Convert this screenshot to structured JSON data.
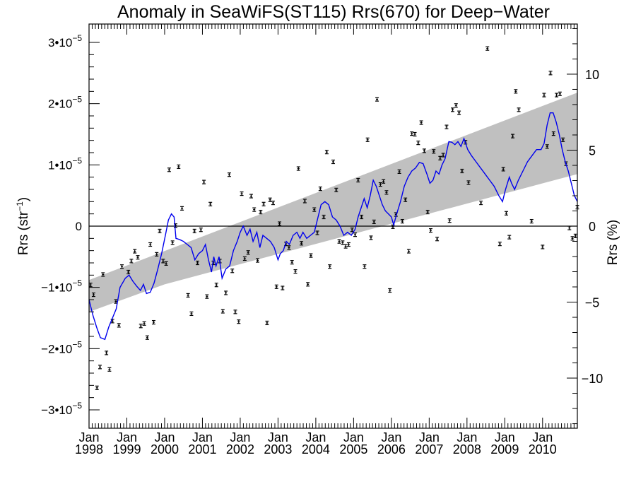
{
  "chart_data": {
    "type": "scatter",
    "title": "Anomaly in SeaWiFS(ST115) Rrs(670) for Deep−Water",
    "ylabel_left": {
      "base": "Rrs (str",
      "sup": "−1",
      "close": ")"
    },
    "ylabel_right": "Rrs (%)",
    "x_domain": [
      1998.0,
      2010.92
    ],
    "x_ticks": [
      {
        "x": 1998,
        "month": "Jan",
        "year": "1998"
      },
      {
        "x": 1999,
        "month": "Jan",
        "year": "1999"
      },
      {
        "x": 2000,
        "month": "Jan",
        "year": "2000"
      },
      {
        "x": 2001,
        "month": "Jan",
        "year": "2001"
      },
      {
        "x": 2002,
        "month": "Jan",
        "year": "2002"
      },
      {
        "x": 2003,
        "month": "Jan",
        "year": "2003"
      },
      {
        "x": 2004,
        "month": "Jan",
        "year": "2004"
      },
      {
        "x": 2005,
        "month": "Jan",
        "year": "2005"
      },
      {
        "x": 2006,
        "month": "Jan",
        "year": "2006"
      },
      {
        "x": 2007,
        "month": "Jan",
        "year": "2007"
      },
      {
        "x": 2008,
        "month": "Jan",
        "year": "2008"
      },
      {
        "x": 2009,
        "month": "Jan",
        "year": "2009"
      },
      {
        "x": 2010,
        "month": "Jan",
        "year": "2010"
      }
    ],
    "y_left_range": [
      -3.3e-05,
      3.3e-05
    ],
    "y_left_ticks": [
      {
        "value": 3e-05,
        "mant": "3•10",
        "exp": "−5"
      },
      {
        "value": 2e-05,
        "mant": "2•10",
        "exp": "−5"
      },
      {
        "value": 1e-05,
        "mant": "1•10",
        "exp": "−5"
      },
      {
        "value": 0,
        "mant": "0",
        "exp": ""
      },
      {
        "value": -1e-05,
        "mant": "−1•10",
        "exp": "−5"
      },
      {
        "value": -2e-05,
        "mant": "−2•10",
        "exp": "−5"
      },
      {
        "value": -3e-05,
        "mant": "−3•10",
        "exp": "−5"
      }
    ],
    "y_right_range": [
      -13.3,
      13.3
    ],
    "y_right_ticks": [
      {
        "value": 10,
        "label": "10"
      },
      {
        "value": 5,
        "label": "5"
      },
      {
        "value": 0,
        "label": "0"
      },
      {
        "value": -5,
        "label": "−5"
      },
      {
        "value": -10,
        "label": "−10"
      }
    ],
    "zero_line": 0,
    "points": [
      [
        1998.04,
        -9.6e-06
      ],
      [
        1998.12,
        -1.12e-05
      ],
      [
        1998.21,
        -2.64e-05
      ],
      [
        1998.29,
        -2.3e-05
      ],
      [
        1998.37,
        -7.9e-06
      ],
      [
        1998.46,
        -2.07e-05
      ],
      [
        1998.54,
        -2.34e-05
      ],
      [
        1998.62,
        -1.55e-05
      ],
      [
        1998.71,
        -1.23e-05
      ],
      [
        1998.79,
        -1.62e-05
      ],
      [
        1998.87,
        -6.6e-06
      ],
      [
        1999.04,
        -7.5e-06
      ],
      [
        1999.12,
        -5.7e-06
      ],
      [
        1999.21,
        -4.1e-06
      ],
      [
        1999.29,
        -5.1e-06
      ],
      [
        1999.37,
        -1.63e-05
      ],
      [
        1999.46,
        -1.59e-05
      ],
      [
        1999.54,
        -1.82e-05
      ],
      [
        1999.62,
        -3e-06
      ],
      [
        1999.71,
        -1.57e-05
      ],
      [
        1999.79,
        -4.6e-06
      ],
      [
        1999.87,
        -8e-07
      ],
      [
        1999.96,
        -5.7e-06
      ],
      [
        2000.04,
        -6.1e-06
      ],
      [
        2000.12,
        9.2e-06
      ],
      [
        2000.21,
        -2.7e-06
      ],
      [
        2000.29,
        9e-08
      ],
      [
        2000.37,
        9.7e-06
      ],
      [
        2000.46,
        2.9e-06
      ],
      [
        2000.62,
        -1.13e-05
      ],
      [
        2000.71,
        -1.43e-05
      ],
      [
        2000.79,
        -8e-07
      ],
      [
        2000.87,
        -6e-06
      ],
      [
        2000.96,
        -6e-07
      ],
      [
        2001.04,
        7.2e-06
      ],
      [
        2001.12,
        -1.15e-05
      ],
      [
        2001.21,
        3.6e-06
      ],
      [
        2001.29,
        -6e-06
      ],
      [
        2001.37,
        -9.6e-06
      ],
      [
        2001.46,
        -5.7e-06
      ],
      [
        2001.54,
        -1.39e-05
      ],
      [
        2001.62,
        -1.09e-05
      ],
      [
        2001.71,
        8.4e-06
      ],
      [
        2001.79,
        -7.3e-06
      ],
      [
        2001.87,
        -1.4e-05
      ],
      [
        2001.96,
        -1.56e-05
      ],
      [
        2002.04,
        5.3e-06
      ],
      [
        2002.12,
        -5.3e-06
      ],
      [
        2002.21,
        -4.3e-06
      ],
      [
        2002.29,
        4.9e-06
      ],
      [
        2002.37,
        2.7e-06
      ],
      [
        2002.46,
        -5.6e-06
      ],
      [
        2002.54,
        2.3e-06
      ],
      [
        2002.62,
        3.6e-06
      ],
      [
        2002.71,
        -1.58e-05
      ],
      [
        2002.79,
        4.3e-06
      ],
      [
        2002.87,
        3.8e-06
      ],
      [
        2002.96,
        -9.9e-06
      ],
      [
        2003.04,
        4e-07
      ],
      [
        2003.12,
        -1.01e-05
      ],
      [
        2003.21,
        -2.9e-06
      ],
      [
        2003.29,
        -3.5e-06
      ],
      [
        2003.37,
        -5.9e-06
      ],
      [
        2003.46,
        -7.4e-06
      ],
      [
        2003.54,
        9.4e-06
      ],
      [
        2003.62,
        -2.8e-06
      ],
      [
        2003.71,
        4.1e-06
      ],
      [
        2003.79,
        -9.5e-06
      ],
      [
        2003.87,
        -4.8e-06
      ],
      [
        2003.96,
        2.7e-06
      ],
      [
        2004.04,
        -1.1e-06
      ],
      [
        2004.12,
        6.1e-06
      ],
      [
        2004.21,
        1.5e-06
      ],
      [
        2004.29,
        1.21e-05
      ],
      [
        2004.37,
        -6.6e-06
      ],
      [
        2004.46,
        1.05e-05
      ],
      [
        2004.54,
        5.9e-06
      ],
      [
        2004.62,
        -2.5e-06
      ],
      [
        2004.71,
        -2.7e-06
      ],
      [
        2004.79,
        -3.3e-06
      ],
      [
        2004.87,
        -3e-06
      ],
      [
        2004.96,
        -6e-07
      ],
      [
        2005.04,
        -1.4e-06
      ],
      [
        2005.12,
        7.5e-06
      ],
      [
        2005.21,
        1.5e-06
      ],
      [
        2005.29,
        -6.6e-06
      ],
      [
        2005.37,
        1.41e-05
      ],
      [
        2005.46,
        -1.9e-06
      ],
      [
        2005.54,
        7e-07
      ],
      [
        2005.62,
        2.07e-05
      ],
      [
        2005.71,
        6.8e-06
      ],
      [
        2005.79,
        7.3e-06
      ],
      [
        2005.87,
        5.5e-06
      ],
      [
        2005.96,
        -1.05e-05
      ],
      [
        2006.04,
        -1e-07
      ],
      [
        2006.12,
        1.9e-06
      ],
      [
        2006.21,
        8.9e-06
      ],
      [
        2006.29,
        8e-07
      ],
      [
        2006.37,
        4.3e-06
      ],
      [
        2006.46,
        -4.1e-06
      ],
      [
        2006.54,
        1.51e-05
      ],
      [
        2006.62,
        1.5e-05
      ],
      [
        2006.71,
        1.36e-05
      ],
      [
        2006.79,
        1.69e-05
      ],
      [
        2006.87,
        1.23e-05
      ],
      [
        2006.96,
        2.3e-06
      ],
      [
        2007.04,
        -7e-07
      ],
      [
        2007.12,
        1.22e-05
      ],
      [
        2007.21,
        -2.1e-06
      ],
      [
        2007.29,
        1.11e-05
      ],
      [
        2007.37,
        1.16e-05
      ],
      [
        2007.46,
        1.62e-05
      ],
      [
        2007.54,
        9e-07
      ],
      [
        2007.62,
        1.9e-05
      ],
      [
        2007.71,
        1.97e-05
      ],
      [
        2007.79,
        1.85e-05
      ],
      [
        2007.87,
        9e-06
      ],
      [
        2007.96,
        1.37e-05
      ],
      [
        2008.04,
        7.1e-06
      ],
      [
        2008.37,
        3.8e-06
      ],
      [
        2008.54,
        2.9e-05
      ],
      [
        2008.87,
        -2.9e-06
      ],
      [
        2008.96,
        9.3e-06
      ],
      [
        2009.04,
        2.1e-06
      ],
      [
        2009.12,
        -1.8e-06
      ],
      [
        2009.21,
        1.47e-05
      ],
      [
        2009.29,
        2.2e-05
      ],
      [
        2009.37,
        1.9e-05
      ],
      [
        2009.71,
        8e-07
      ],
      [
        2010.0,
        -3.4e-06
      ],
      [
        2010.04,
        2.14e-05
      ],
      [
        2010.12,
        1.3e-05
      ],
      [
        2010.21,
        2.5e-05
      ],
      [
        2010.29,
        1.51e-05
      ],
      [
        2010.37,
        2.14e-05
      ],
      [
        2010.46,
        2.16e-05
      ],
      [
        2010.54,
        1.41e-05
      ],
      [
        2010.62,
        1.02e-05
      ],
      [
        2010.71,
        -3e-07
      ],
      [
        2010.79,
        -2e-06
      ],
      [
        2010.87,
        -1.6e-06
      ],
      [
        2010.92,
        3.1e-06
      ]
    ],
    "smooth_line": [
      [
        1998.0,
        -1.2e-05
      ],
      [
        1998.1,
        -1.45e-05
      ],
      [
        1998.2,
        -1.65e-05
      ],
      [
        1998.3,
        -1.82e-05
      ],
      [
        1998.42,
        -1.85e-05
      ],
      [
        1998.52,
        -1.65e-05
      ],
      [
        1998.62,
        -1.5e-05
      ],
      [
        1998.72,
        -1.35e-05
      ],
      [
        1998.82,
        -1e-05
      ],
      [
        1998.96,
        -8.5e-06
      ],
      [
        1999.06,
        -8e-06
      ],
      [
        1999.16,
        -9e-06
      ],
      [
        1999.26,
        -9.8e-06
      ],
      [
        1999.36,
        -1.05e-05
      ],
      [
        1999.44,
        -9.5e-06
      ],
      [
        1999.52,
        -1.1e-05
      ],
      [
        1999.62,
        -1.08e-05
      ],
      [
        1999.72,
        -9.3e-06
      ],
      [
        1999.82,
        -7e-06
      ],
      [
        1999.92,
        -4.5e-06
      ],
      [
        2000.02,
        -1.5e-06
      ],
      [
        2000.1,
        1e-06
      ],
      [
        2000.18,
        2e-06
      ],
      [
        2000.25,
        1.5e-06
      ],
      [
        2000.3,
        -2e-06
      ],
      [
        2000.4,
        -2.2e-06
      ],
      [
        2000.5,
        -2.5e-06
      ],
      [
        2000.6,
        -3e-06
      ],
      [
        2000.7,
        -3.5e-06
      ],
      [
        2000.8,
        -5.5e-06
      ],
      [
        2000.9,
        -4.5e-06
      ],
      [
        2001.0,
        -4e-06
      ],
      [
        2001.08,
        -3e-06
      ],
      [
        2001.16,
        -5.5e-06
      ],
      [
        2001.24,
        -7.5e-06
      ],
      [
        2001.3,
        -5e-06
      ],
      [
        2001.36,
        -6.5e-06
      ],
      [
        2001.44,
        -5e-06
      ],
      [
        2001.52,
        -8.5e-06
      ],
      [
        2001.62,
        -7e-06
      ],
      [
        2001.72,
        -6.5e-06
      ],
      [
        2001.82,
        -4e-06
      ],
      [
        2001.92,
        -2.5e-06
      ],
      [
        2002.0,
        -1e-06
      ],
      [
        2002.08,
        0.0
      ],
      [
        2002.18,
        -1.5e-06
      ],
      [
        2002.26,
        -5e-07
      ],
      [
        2002.34,
        -2.5e-06
      ],
      [
        2002.44,
        -1e-06
      ],
      [
        2002.52,
        -3.5e-06
      ],
      [
        2002.6,
        -1.5e-06
      ],
      [
        2002.7,
        -2e-06
      ],
      [
        2002.8,
        -2.5e-06
      ],
      [
        2002.9,
        -3.5e-06
      ],
      [
        2003.0,
        -5.5e-06
      ],
      [
        2003.06,
        -4.5e-06
      ],
      [
        2003.14,
        -4e-06
      ],
      [
        2003.22,
        -2.5e-06
      ],
      [
        2003.3,
        -3e-06
      ],
      [
        2003.4,
        -1.5e-06
      ],
      [
        2003.5,
        -1e-06
      ],
      [
        2003.58,
        -2e-06
      ],
      [
        2003.66,
        -1e-06
      ],
      [
        2003.76,
        -2e-06
      ],
      [
        2003.86,
        -1.5e-06
      ],
      [
        2003.96,
        -1e-06
      ],
      [
        2004.04,
        1e-06
      ],
      [
        2004.14,
        3.5e-06
      ],
      [
        2004.24,
        4e-06
      ],
      [
        2004.34,
        3.5e-06
      ],
      [
        2004.44,
        1.5e-06
      ],
      [
        2004.54,
        1e-06
      ],
      [
        2004.64,
        0.0
      ],
      [
        2004.74,
        -1.5e-06
      ],
      [
        2004.84,
        -1e-06
      ],
      [
        2004.94,
        -1.5e-06
      ],
      [
        2005.04,
        -5e-07
      ],
      [
        2005.12,
        1.5e-06
      ],
      [
        2005.2,
        3e-06
      ],
      [
        2005.28,
        4.5e-06
      ],
      [
        2005.36,
        3e-06
      ],
      [
        2005.44,
        5e-06
      ],
      [
        2005.52,
        7.5e-06
      ],
      [
        2005.6,
        6.5e-06
      ],
      [
        2005.68,
        5e-06
      ],
      [
        2005.76,
        3.5e-06
      ],
      [
        2005.84,
        2.5e-06
      ],
      [
        2005.92,
        2e-06
      ],
      [
        2006.0,
        1.5e-06
      ],
      [
        2006.06,
        2e-07
      ],
      [
        2006.14,
        2e-06
      ],
      [
        2006.24,
        4e-06
      ],
      [
        2006.34,
        6.5e-06
      ],
      [
        2006.44,
        8e-06
      ],
      [
        2006.54,
        9e-06
      ],
      [
        2006.64,
        9.5e-06
      ],
      [
        2006.74,
        1.04e-05
      ],
      [
        2006.84,
        1.02e-05
      ],
      [
        2006.94,
        8.5e-06
      ],
      [
        2007.02,
        7e-06
      ],
      [
        2007.1,
        7.5e-06
      ],
      [
        2007.18,
        9e-06
      ],
      [
        2007.26,
        8.5e-06
      ],
      [
        2007.34,
        1e-05
      ],
      [
        2007.42,
        1.1e-05
      ],
      [
        2007.52,
        1.38e-05
      ],
      [
        2007.6,
        1.37e-05
      ],
      [
        2007.68,
        1.33e-05
      ],
      [
        2007.76,
        1.38e-05
      ],
      [
        2007.84,
        1.3e-05
      ],
      [
        2007.92,
        1.43e-05
      ],
      [
        2008.02,
        1.25e-05
      ],
      [
        2008.12,
        1.15e-05
      ],
      [
        2008.24,
        1.05e-05
      ],
      [
        2008.36,
        9.5e-06
      ],
      [
        2008.48,
        8.5e-06
      ],
      [
        2008.6,
        7.5e-06
      ],
      [
        2008.72,
        6.5e-06
      ],
      [
        2008.84,
        5e-06
      ],
      [
        2008.94,
        4e-06
      ],
      [
        2009.02,
        6e-06
      ],
      [
        2009.12,
        8e-06
      ],
      [
        2009.18,
        7e-06
      ],
      [
        2009.26,
        6e-06
      ],
      [
        2009.36,
        7.5e-06
      ],
      [
        2009.48,
        9e-06
      ],
      [
        2009.6,
        1.05e-05
      ],
      [
        2009.72,
        1.15e-05
      ],
      [
        2009.84,
        1.25e-05
      ],
      [
        2009.96,
        1.25e-05
      ],
      [
        2010.04,
        1.35e-05
      ],
      [
        2010.12,
        1.65e-05
      ],
      [
        2010.2,
        1.85e-05
      ],
      [
        2010.28,
        1.85e-05
      ],
      [
        2010.36,
        1.7e-05
      ],
      [
        2010.44,
        1.5e-05
      ],
      [
        2010.52,
        1.25e-05
      ],
      [
        2010.6,
        1.05e-05
      ],
      [
        2010.68,
        9e-06
      ],
      [
        2010.76,
        7e-06
      ],
      [
        2010.84,
        5e-06
      ],
      [
        2010.92,
        4e-06
      ]
    ],
    "band": {
      "upper": [
        [
          1998.0,
          -8.8e-06
        ],
        [
          2010.92,
          2.18e-05
        ]
      ],
      "lower": [
        [
          1998.0,
          -1.4e-05
        ],
        [
          2000.0,
          -9.5e-06
        ],
        [
          2010.92,
          8.5e-06
        ]
      ]
    },
    "colors": {
      "band": "#c0c0c0",
      "line": "#0000ee",
      "points": "#000000",
      "axis": "#000000"
    }
  }
}
